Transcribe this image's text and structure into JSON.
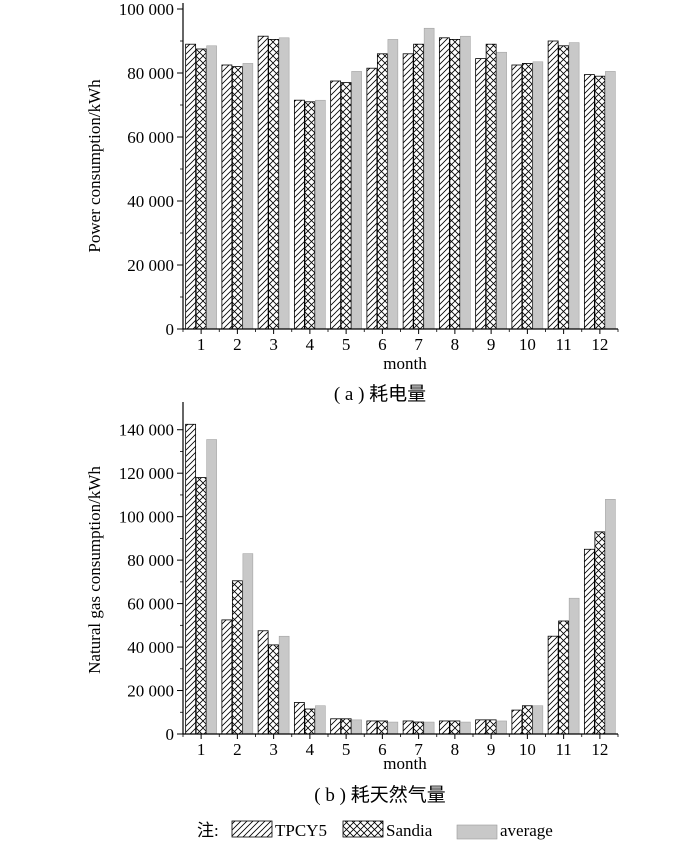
{
  "chart_data": [
    {
      "type": "bar",
      "caption": "( a ) 耗电量",
      "xlabel": "month",
      "ylabel": "Power consumption/kWh",
      "ylim": [
        0,
        100000
      ],
      "yticks": [
        0,
        20000,
        40000,
        60000,
        80000,
        100000
      ],
      "ytick_labels": [
        "0",
        "20 000",
        "40 000",
        "60 000",
        "80 000",
        "100 000"
      ],
      "categories": [
        "1",
        "2",
        "3",
        "4",
        "5",
        "6",
        "7",
        "8",
        "9",
        "10",
        "11",
        "12"
      ],
      "series": [
        {
          "name": "TPCY5",
          "values": [
            89000,
            82500,
            91500,
            71500,
            77500,
            81500,
            86000,
            91000,
            84500,
            82500,
            90000,
            79500
          ]
        },
        {
          "name": "Sandia",
          "values": [
            87500,
            82000,
            90500,
            71000,
            77000,
            86000,
            89000,
            90500,
            89000,
            83000,
            88500,
            79000
          ]
        },
        {
          "name": "average",
          "values": [
            88500,
            83000,
            91000,
            71500,
            80500,
            90500,
            94000,
            91500,
            86500,
            83500,
            89500,
            80500
          ]
        }
      ]
    },
    {
      "type": "bar",
      "caption": "( b ) 耗天然气量",
      "xlabel": "month",
      "ylabel": "Natural gas consumption/kWh",
      "ylim": [
        0,
        150000
      ],
      "yticks": [
        0,
        20000,
        40000,
        60000,
        80000,
        100000,
        120000,
        140000
      ],
      "ytick_labels": [
        "0",
        "20 000",
        "40 000",
        "60 000",
        "80 000",
        "100 000",
        "120 000",
        "140 000"
      ],
      "categories": [
        "1",
        "2",
        "3",
        "4",
        "5",
        "6",
        "7",
        "8",
        "9",
        "10",
        "11",
        "12"
      ],
      "series": [
        {
          "name": "TPCY5",
          "values": [
            142500,
            52500,
            47500,
            14500,
            7000,
            6000,
            6000,
            6000,
            6500,
            11000,
            45000,
            85000
          ]
        },
        {
          "name": "Sandia",
          "values": [
            118000,
            70500,
            41000,
            11500,
            7000,
            6000,
            5500,
            6000,
            6500,
            13000,
            52000,
            93000
          ]
        },
        {
          "name": "average",
          "values": [
            135500,
            83000,
            45000,
            13000,
            6500,
            5500,
            5500,
            5500,
            6000,
            13000,
            62500,
            108000
          ]
        }
      ]
    }
  ],
  "legend": {
    "prefix": "注:",
    "items": [
      {
        "label": "TPCY5",
        "pattern": "diagonal-hatch"
      },
      {
        "label": "Sandia",
        "pattern": "cross-hatch"
      },
      {
        "label": "average",
        "pattern": "solid-gray"
      }
    ]
  },
  "colors": {
    "average_fill": "#c8c8c8",
    "bar_stroke": "#000000",
    "hatch_fill": "#ffffff"
  }
}
